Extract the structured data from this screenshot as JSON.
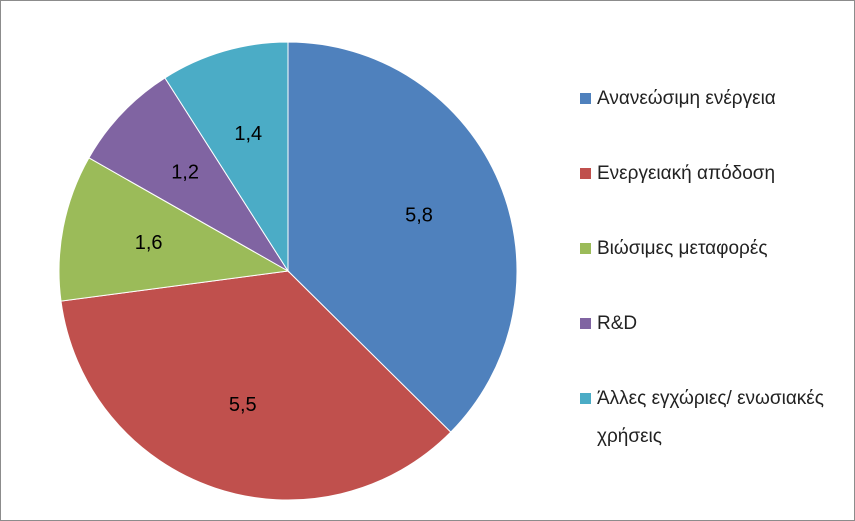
{
  "chart_data": {
    "type": "pie",
    "categories": [
      "Ανανεώσιμη ενέργεια",
      "Ενεργειακή απόδοση",
      "Βιώσιμες μεταφορές",
      "R&D",
      "Άλλες εγχώριες/ ενωσιακές χρήσεις"
    ],
    "values": [
      5.8,
      5.5,
      1.6,
      1.2,
      1.4
    ],
    "value_labels": [
      "5,8",
      "5,5",
      "1,6",
      "1,2",
      "1,4"
    ],
    "colors": [
      "#4f81bd",
      "#c0504d",
      "#9bbb59",
      "#8064a2",
      "#4bacc6"
    ],
    "legend": "right"
  }
}
